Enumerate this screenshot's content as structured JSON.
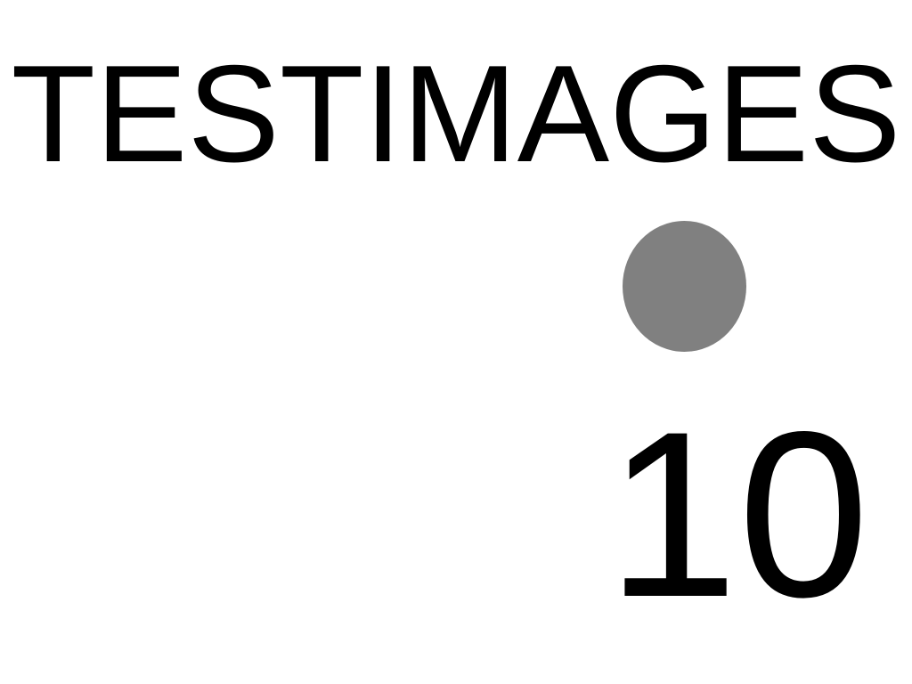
{
  "title": "TESTIMAGES",
  "number": "10",
  "colors": {
    "background": "#ffffff",
    "text": "#000000",
    "dot": "#808080"
  }
}
